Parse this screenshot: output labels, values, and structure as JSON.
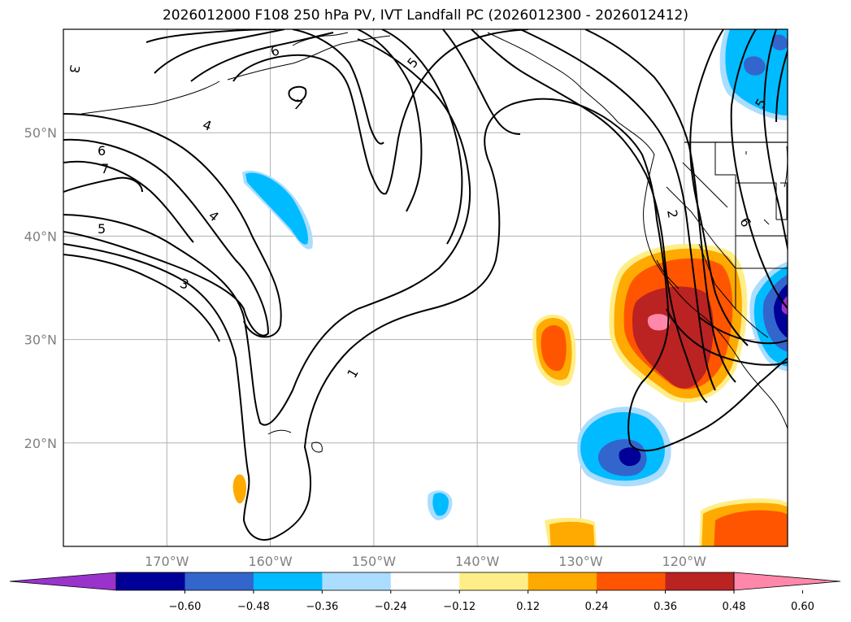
{
  "title": "2026012000 F108 250 hPa PV, IVT Landfall PC (2026012300 - 2026012412)",
  "map": {
    "projection": "cylindrical",
    "lon_range": [
      -180,
      -110
    ],
    "lat_range": [
      10,
      60
    ],
    "lat_ticks": [
      {
        "value": 20,
        "label": "20°N"
      },
      {
        "value": 30,
        "label": "30°N"
      },
      {
        "value": 40,
        "label": "40°N"
      },
      {
        "value": 50,
        "label": "50°N"
      }
    ],
    "lon_ticks": [
      {
        "value": -170,
        "label": "170°W"
      },
      {
        "value": -160,
        "label": "160°W"
      },
      {
        "value": -150,
        "label": "150°W"
      },
      {
        "value": -140,
        "label": "140°W"
      },
      {
        "value": -130,
        "label": "130°W"
      },
      {
        "value": -120,
        "label": "120°W"
      }
    ],
    "grid_color": "#b0b0b0",
    "tick_label_color": "#808080"
  },
  "pv_contour_labels": [
    "1",
    "2",
    "3",
    "3",
    "4",
    "4",
    "5",
    "5",
    "5",
    "6",
    "6",
    "6",
    "7",
    "7"
  ],
  "colorbar": {
    "ticks": [
      "−0.60",
      "−0.48",
      "−0.36",
      "−0.24",
      "−0.12",
      "0.12",
      "0.24",
      "0.36",
      "0.48",
      "0.60"
    ],
    "colors": [
      "#9933cc",
      "#000099",
      "#3366cc",
      "#00bbff",
      "#aaddff",
      "#ffffff",
      "#ffee88",
      "#ffaa00",
      "#ff5500",
      "#bb2222",
      "#ff88aa"
    ]
  }
}
